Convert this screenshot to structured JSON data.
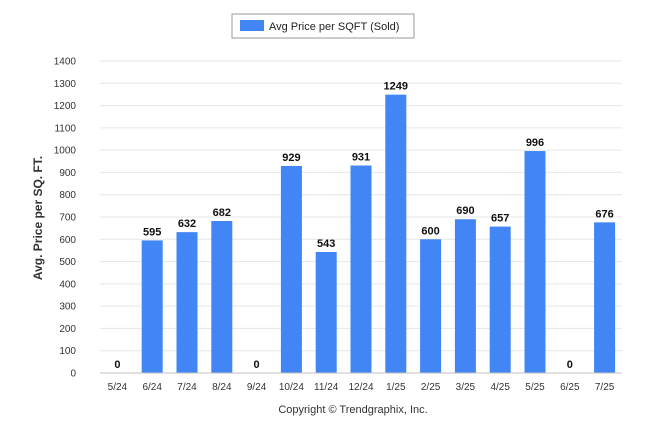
{
  "chart_data": {
    "type": "bar",
    "legend_label": "Avg Price per SQFT (Sold)",
    "legend_position": "top-center",
    "ylabel": "Avg. Price per SQ. FT.",
    "xlabel": "",
    "ylim": [
      0,
      1400
    ],
    "yticks": [
      "0",
      "100",
      "200",
      "300",
      "400",
      "500",
      "600",
      "700",
      "800",
      "900",
      "1000",
      "1100",
      "1200",
      "1300",
      "1400"
    ],
    "grid": true,
    "categories": [
      "5/24",
      "6/24",
      "7/24",
      "8/24",
      "9/24",
      "10/24",
      "11/24",
      "12/24",
      "1/25",
      "2/25",
      "3/25",
      "4/25",
      "5/25",
      "6/25",
      "7/25"
    ],
    "values": [
      0,
      595,
      632,
      682,
      0,
      929,
      543,
      931,
      1249,
      600,
      690,
      657,
      996,
      0,
      676
    ],
    "bar_color": "#4285f4"
  },
  "footer": {
    "copyright": "Copyright © Trendgraphix, Inc."
  }
}
